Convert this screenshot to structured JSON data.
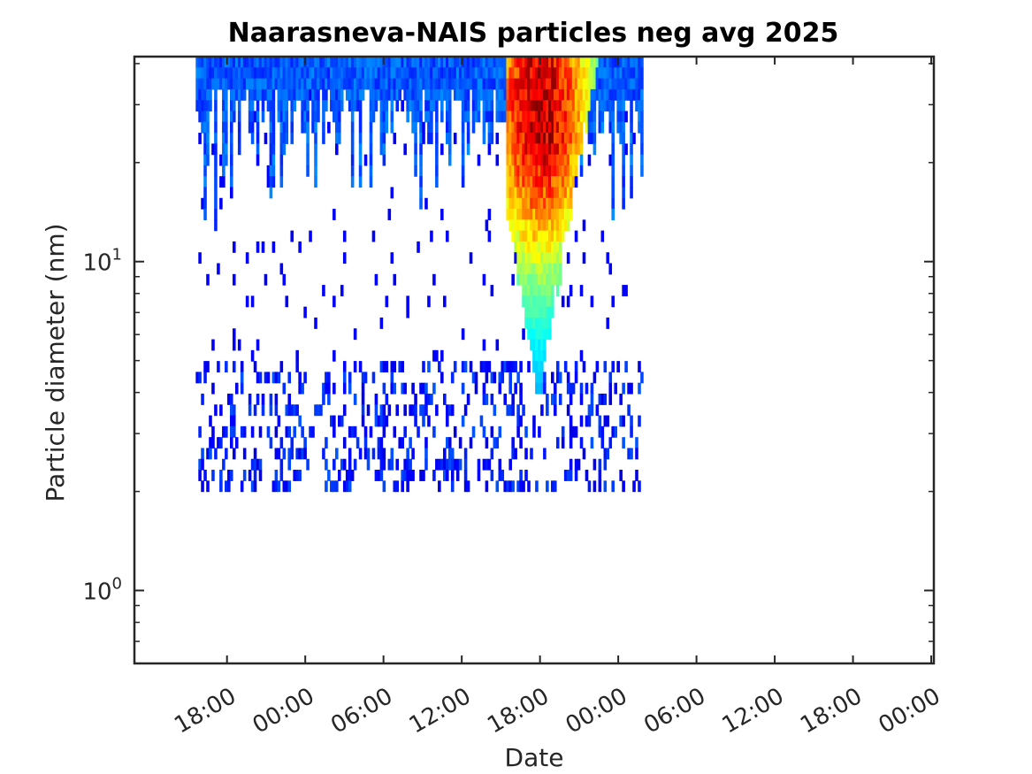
{
  "chart_data": {
    "type": "heatmap",
    "title": "Naarasneva-NAIS particles neg avg 2025",
    "xlabel": "Date",
    "ylabel": "Particle diameter (nm)",
    "x_axis": {
      "unit": "hours since first 18:00 tick",
      "range": [
        -7.1,
        54.2
      ],
      "ticks": [
        {
          "value": 0,
          "label": "18:00"
        },
        {
          "value": 6,
          "label": "00:00"
        },
        {
          "value": 12,
          "label": "06:00"
        },
        {
          "value": 18,
          "label": "12:00"
        },
        {
          "value": 24,
          "label": "18:00"
        },
        {
          "value": 30,
          "label": "00:00"
        },
        {
          "value": 36,
          "label": "06:00"
        },
        {
          "value": 42,
          "label": "12:00"
        },
        {
          "value": 48,
          "label": "18:00"
        },
        {
          "value": 54,
          "label": "00:00"
        }
      ],
      "tick_rotation_deg": -30
    },
    "y_axis": {
      "scale": "log",
      "range_nm": [
        0.6,
        42
      ],
      "ticks": [
        {
          "value": 1,
          "base": "10",
          "exponent": "0"
        },
        {
          "value": 10,
          "base": "10",
          "exponent": "1"
        }
      ]
    },
    "data_extent": {
      "x_start": -2.4,
      "x_end": 31.9,
      "diameter_min_nm": 2.0,
      "diameter_max_nm": 42
    },
    "features": [
      {
        "kind": "background_band",
        "diameter_nm": [
          25,
          42
        ],
        "level": 0.22
      },
      {
        "kind": "growth_event",
        "x_start": 21.5,
        "x_end": 29.5,
        "diameter_nm": [
          4,
          42
        ],
        "peak_x": 24.0,
        "peak_diameter_nm": 30,
        "level": 0.7
      },
      {
        "kind": "sparse_small_particles",
        "diameter_nm": [
          2.0,
          5
        ],
        "level": 0.15
      }
    ],
    "colormap": "jet",
    "grid": false,
    "legend": "none"
  }
}
